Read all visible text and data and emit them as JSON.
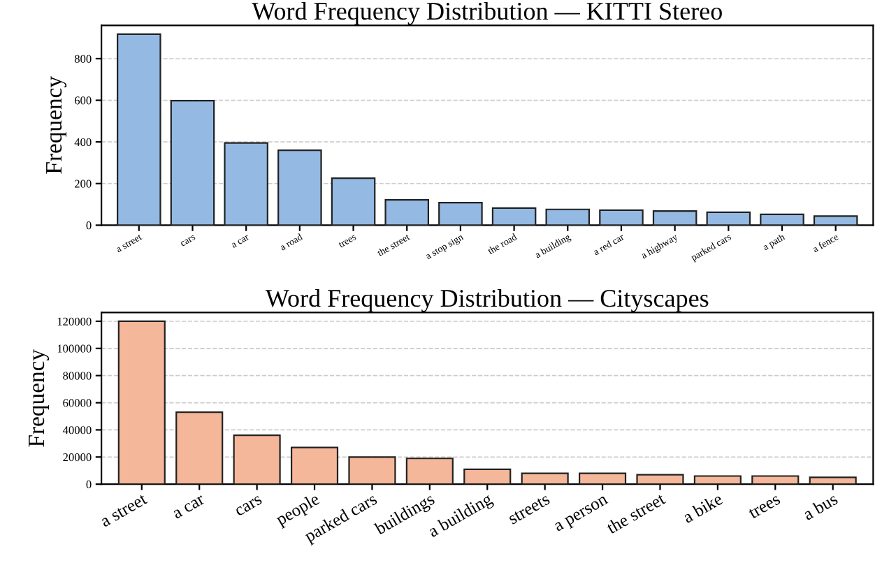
{
  "chart_data": [
    {
      "type": "bar",
      "title": "Word Frequency Distribution — KITTI Stereo",
      "ylabel": "Frequency",
      "categories": [
        "a street",
        "cars",
        "a car",
        "a road",
        "trees",
        "the street",
        "a stop sign",
        "the road",
        "a building",
        "a red car",
        "a highway",
        "parked cars",
        "a path",
        "a fence"
      ],
      "values": [
        918,
        598,
        395,
        360,
        226,
        122,
        108,
        82,
        76,
        72,
        68,
        62,
        52,
        44
      ],
      "color": "#94b9e3",
      "ylim": [
        0,
        960
      ],
      "yticks": [
        0,
        200,
        400,
        600,
        800
      ],
      "grid": "y"
    },
    {
      "type": "bar",
      "title": "Word Frequency Distribution — Cityscapes",
      "ylabel": "Frequency",
      "categories": [
        "a street",
        "a car",
        "cars",
        "people",
        "parked cars",
        "buildings",
        "a building",
        "streets",
        "a person",
        "the street",
        "a bike",
        "trees",
        "a bus"
      ],
      "values": [
        120000,
        53000,
        36000,
        27000,
        20000,
        19000,
        11000,
        8000,
        8000,
        7000,
        6000,
        6000,
        5000
      ],
      "color": "#f5b79a",
      "ylim": [
        0,
        126500
      ],
      "yticks": [
        0,
        20000,
        40000,
        60000,
        80000,
        100000,
        120000
      ],
      "grid": "y"
    }
  ]
}
